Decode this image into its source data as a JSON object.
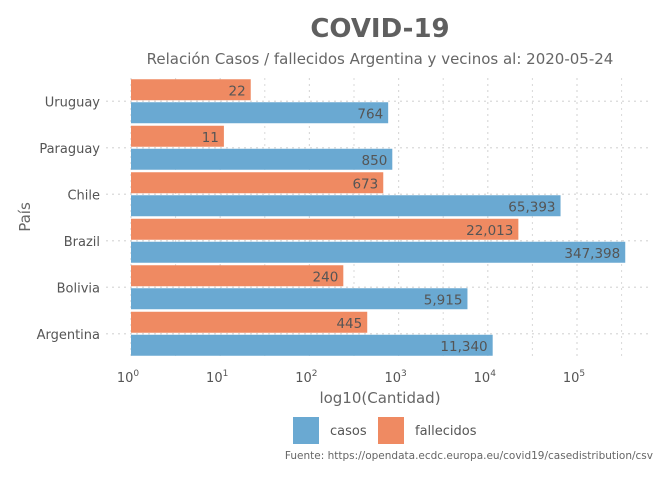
{
  "chart_data": {
    "type": "bar",
    "orientation": "horizontal",
    "title": "COVID-19",
    "subtitle": "Relación Casos / fallecidos Argentina y vecinos al:  2020-05-24",
    "xlabel": "log10(Cantidad)",
    "ylabel": "País",
    "x_scale": "log",
    "xlim": [
      1,
      400000
    ],
    "x_ticks": [
      {
        "base": "10",
        "exp": "0"
      },
      {
        "base": "10",
        "exp": "1"
      },
      {
        "base": "10",
        "exp": "2"
      },
      {
        "base": "10",
        "exp": "3"
      },
      {
        "base": "10",
        "exp": "4"
      },
      {
        "base": "10",
        "exp": "5"
      }
    ],
    "categories": [
      "Uruguay",
      "Paraguay",
      "Chile",
      "Brazil",
      "Bolivia",
      "Argentina"
    ],
    "series": [
      {
        "name": "casos",
        "color": "#6aa9d2",
        "values": [
          764,
          850,
          65393,
          347398,
          5915,
          11340
        ],
        "labels": [
          "764",
          "850",
          "65,393",
          "347,398",
          "5,915",
          "11,340"
        ]
      },
      {
        "name": "fallecidos",
        "color": "#ef8a62",
        "values": [
          22,
          11,
          673,
          22013,
          240,
          445
        ],
        "labels": [
          "22",
          "11",
          "673",
          "22,013",
          "240",
          "445"
        ]
      }
    ],
    "grid": true,
    "legend_position": "bottom",
    "caption": "Fuente: https://opendata.ecdc.europa.eu/covid19/casedistribution/csv"
  }
}
